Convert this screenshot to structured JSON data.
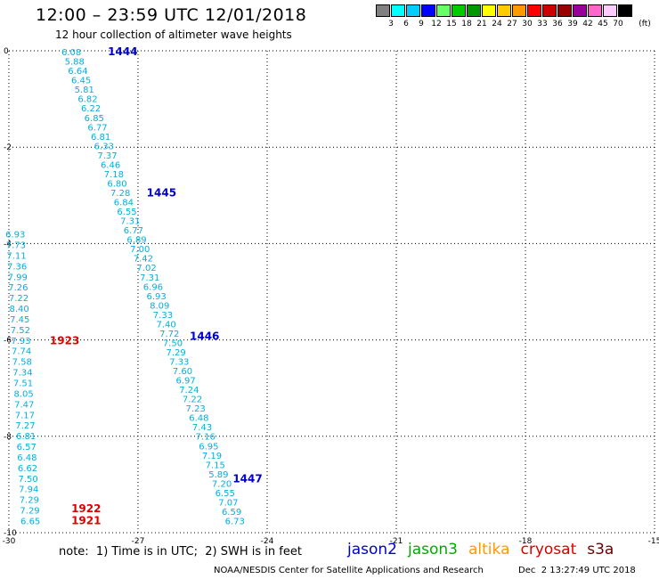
{
  "header": {
    "title": "12:00 – 23:59 UTC 12/01/2018",
    "subtitle": "12 hour collection of altimeter wave heights"
  },
  "legend": {
    "unit": "(ft)",
    "colors": [
      "#808080",
      "#00ffff",
      "#00ccff",
      "#0000ff",
      "#66ff66",
      "#00cc00",
      "#009900",
      "#ffff00",
      "#ffcc00",
      "#ff9900",
      "#ff0000",
      "#cc0000",
      "#990000",
      "#990099",
      "#ff66cc",
      "#ffccff",
      "#000000"
    ],
    "labels": [
      "3",
      "6",
      "9",
      "12",
      "15",
      "18",
      "21",
      "24",
      "27",
      "30",
      "33",
      "36",
      "39",
      "42",
      "45",
      "70"
    ]
  },
  "chart_data": {
    "type": "scatter",
    "xlim": [
      -30,
      -15
    ],
    "ylim": [
      -10,
      0
    ],
    "xticks": [
      "-30",
      "-27",
      "-24",
      "-21",
      "-18",
      "-15"
    ],
    "yticks": [
      "0",
      "-2",
      "-4",
      "-6",
      "-8",
      "-10"
    ],
    "grid": true,
    "track_color": "#00b0e0",
    "tracks": [
      {
        "name": "jason2",
        "start": [
          -28.55,
          -0.02
        ],
        "end": [
          -24.75,
          -9.75
        ],
        "values": [
          "6.08",
          "5.88",
          "6.64",
          "6.45",
          "5.81",
          "6.82",
          "6.22",
          "6.85",
          "6.77",
          "6.81",
          "6.33",
          "7.37",
          "6.46",
          "7.18",
          "6.80",
          "7.28",
          "6.84",
          "6.55",
          "7.31",
          "6.77",
          "6.89",
          "7.00",
          "7.42",
          "7.02",
          "7.31",
          "6.96",
          "6.93",
          "8.09",
          "7.33",
          "7.40",
          "7.72",
          "7.50",
          "7.29",
          "7.33",
          "7.60",
          "6.97",
          "7.24",
          "7.22",
          "7.23",
          "6.48",
          "7.43",
          "7.16",
          "6.95",
          "7.19",
          "7.15",
          "5.89",
          "7.20",
          "6.55",
          "7.07",
          "6.59",
          "6.73"
        ]
      },
      {
        "name": "cryosat",
        "start": [
          -29.85,
          -3.8
        ],
        "end": [
          -29.5,
          -9.75
        ],
        "values": [
          "6.93",
          "7.73",
          "7.11",
          "7.36",
          "7.99",
          "7.26",
          "7.22",
          "8.40",
          "7.45",
          "7.52",
          "7.93",
          "7.74",
          "7.58",
          "7.34",
          "7.51",
          "8.05",
          "7.47",
          "7.17",
          "7.27",
          "6.81",
          "6.57",
          "6.48",
          "6.62",
          "7.50",
          "7.94",
          "7.29",
          "7.29",
          "6.65"
        ]
      }
    ],
    "time_labels": [
      {
        "text": "1444",
        "x": -27.7,
        "y": -0.02,
        "color": "#0000cc"
      },
      {
        "text": "1445",
        "x": -26.8,
        "y": -2.95,
        "color": "#0000cc"
      },
      {
        "text": "1446",
        "x": -25.8,
        "y": -5.92,
        "color": "#0000cc"
      },
      {
        "text": "1447",
        "x": -24.8,
        "y": -8.88,
        "color": "#0000cc"
      },
      {
        "text": "1923",
        "x": -29.05,
        "y": -6.02,
        "color": "#dd0000"
      },
      {
        "text": "1922",
        "x": -28.55,
        "y": -9.5,
        "color": "#dd0000"
      },
      {
        "text": "1921",
        "x": -28.55,
        "y": -9.75,
        "color": "#dd0000"
      }
    ]
  },
  "footer": {
    "note": "note:  1) Time is in UTC;  2) SWH is in feet",
    "satellites": [
      {
        "name": "jason2",
        "color": "#0000cc"
      },
      {
        "name": "jason3",
        "color": "#00aa00"
      },
      {
        "name": "altika",
        "color": "#ff9900"
      },
      {
        "name": "cryosat",
        "color": "#dd0000"
      },
      {
        "name": "s3a",
        "color": "#660000"
      }
    ],
    "center": "NOAA/NESDIS Center for Satellite Applications and Research",
    "date": "Dec  2 13:27:49 UTC 2018"
  }
}
